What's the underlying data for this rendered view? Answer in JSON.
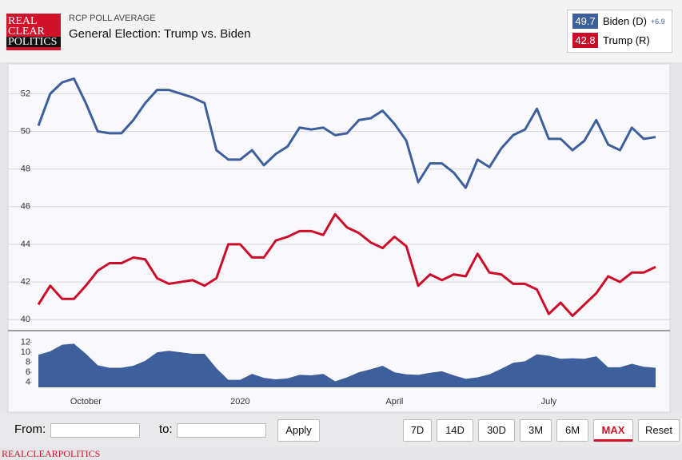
{
  "header": {
    "logo": [
      "REAL",
      "CLEAR",
      "POLITICS"
    ],
    "label": "RCP POLL AVERAGE",
    "title": "General Election: Trump vs. Biden"
  },
  "chart_data": [
    {
      "type": "line",
      "series": [
        {
          "name": "Biden (D)",
          "color": "#3d5f9c",
          "current": 49.7,
          "lead": "+6.9",
          "values": [
            50.3,
            52.0,
            52.6,
            52.8,
            51.5,
            50.0,
            49.9,
            49.9,
            50.6,
            51.5,
            52.2,
            52.2,
            52.0,
            51.8,
            51.5,
            49.0,
            48.5,
            48.5,
            49.0,
            48.2,
            48.8,
            49.2,
            50.2,
            50.1,
            50.2,
            49.8,
            49.9,
            50.6,
            50.7,
            51.1,
            50.4,
            49.5,
            47.3,
            48.3,
            48.3,
            47.8,
            47.0,
            48.5,
            48.1,
            49.1,
            49.8,
            50.1,
            51.2,
            49.6,
            49.6,
            49.0,
            49.5,
            50.6,
            49.3,
            49.0,
            50.2,
            49.6,
            49.7
          ]
        },
        {
          "name": "Trump (R)",
          "color": "#cc0d2a",
          "current": 42.8,
          "values": [
            40.8,
            41.8,
            41.1,
            41.1,
            41.8,
            42.6,
            43.0,
            43.0,
            43.3,
            43.2,
            42.2,
            41.9,
            42.0,
            42.1,
            41.8,
            42.2,
            44.0,
            44.0,
            43.3,
            43.3,
            44.2,
            44.4,
            44.7,
            44.7,
            44.5,
            45.6,
            44.9,
            44.6,
            44.1,
            43.8,
            44.4,
            43.9,
            41.8,
            42.4,
            42.1,
            42.4,
            42.3,
            43.5,
            42.5,
            42.4,
            41.9,
            41.9,
            41.6,
            40.3,
            40.9,
            40.2,
            40.8,
            41.4,
            42.3,
            42.0,
            42.5,
            42.5,
            42.8
          ]
        }
      ],
      "ylim": [
        39.5,
        53.5
      ],
      "yticks": [
        40,
        42,
        44,
        46,
        48,
        50,
        52
      ],
      "grid": true
    },
    {
      "type": "area",
      "color": "#3d5f9c",
      "categories": [
        null,
        null,
        null,
        null,
        "October",
        null,
        null,
        null,
        null,
        null,
        null,
        null,
        null,
        null,
        null,
        null,
        null,
        "2020",
        null,
        null,
        null,
        null,
        null,
        null,
        null,
        null,
        null,
        null,
        null,
        null,
        "April",
        null,
        null,
        null,
        null,
        null,
        null,
        null,
        null,
        null,
        null,
        null,
        null,
        "July",
        null,
        null,
        null,
        null,
        null,
        null,
        null,
        null,
        null
      ],
      "values": [
        9.5,
        10.2,
        11.5,
        11.7,
        9.7,
        7.4,
        6.9,
        6.9,
        7.3,
        8.3,
        10.0,
        10.3,
        10.0,
        9.7,
        9.7,
        6.8,
        4.5,
        4.5,
        5.7,
        4.9,
        4.6,
        4.8,
        5.5,
        5.4,
        5.7,
        4.2,
        5.0,
        6.0,
        6.6,
        7.3,
        6.0,
        5.6,
        5.5,
        5.9,
        6.2,
        5.4,
        4.7,
        5.0,
        5.6,
        6.7,
        7.9,
        8.2,
        9.6,
        9.3,
        8.7,
        8.8,
        8.7,
        9.2,
        7.0,
        7.0,
        7.7,
        7.1,
        6.9
      ],
      "ylim": [
        3,
        14
      ],
      "yticks": [
        4,
        6,
        8,
        10,
        12
      ],
      "grid": false
    }
  ],
  "controls": {
    "from": "From:",
    "to": "to:",
    "apply": "Apply",
    "ranges": [
      "7D",
      "14D",
      "30D",
      "3M",
      "6M",
      "MAX",
      "Reset"
    ],
    "active": 5
  },
  "footer": "REALCLEARPOLITICS"
}
